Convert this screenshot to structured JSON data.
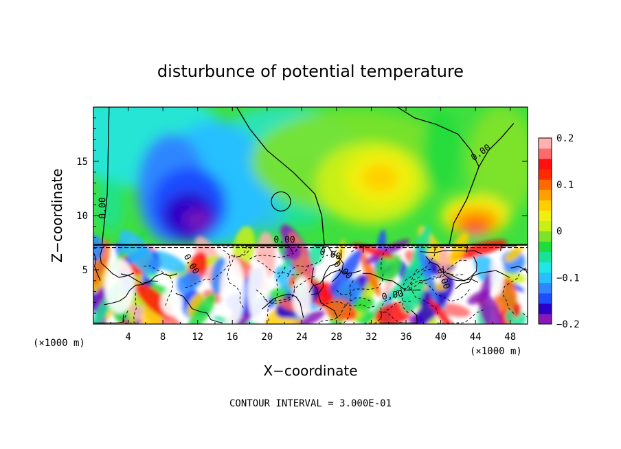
{
  "chart_data": {
    "type": "heatmap",
    "title": "disturbunce of potential temperature",
    "xlabel": "X−coordinate",
    "ylabel": "Z−coordinate",
    "x_unit_left": "(×1000 m)",
    "x_unit_right": "(×1000 m)",
    "xlim": [
      0,
      50
    ],
    "ylim": [
      0,
      20
    ],
    "x_ticks": [
      "4",
      "8",
      "12",
      "16",
      "20",
      "24",
      "28",
      "32",
      "36",
      "40",
      "44",
      "48"
    ],
    "x_tick_values": [
      4,
      8,
      12,
      16,
      20,
      24,
      28,
      32,
      36,
      40,
      44,
      48
    ],
    "y_ticks": [
      "5",
      "10",
      "15"
    ],
    "y_tick_values": [
      5,
      10,
      15
    ],
    "colorbar": {
      "range": [
        -0.2,
        0.2
      ],
      "tick_labels": [
        "0.2",
        "0.1",
        "0",
        "−0.1",
        "−0.2"
      ],
      "tick_values": [
        0.2,
        0.1,
        0,
        -0.1,
        -0.2
      ],
      "colors": [
        "#8a18b8",
        "#2a00c8",
        "#1f4cff",
        "#2f86ff",
        "#28bfff",
        "#22e6e6",
        "#18e29a",
        "#1fdc3c",
        "#7ce22a",
        "#c8f014",
        "#f0f010",
        "#ffd000",
        "#ffa000",
        "#ff6a00",
        "#ff2a00",
        "#ff1010",
        "#ff6a6a",
        "#ffb0b0"
      ]
    },
    "contour_labels": [
      "0.00",
      "0.00",
      "0.00",
      "0.00",
      "0.00",
      "0.00",
      "0.00",
      "0.00"
    ],
    "footer": "CONTOUR INTERVAL =  3.000E-01"
  }
}
